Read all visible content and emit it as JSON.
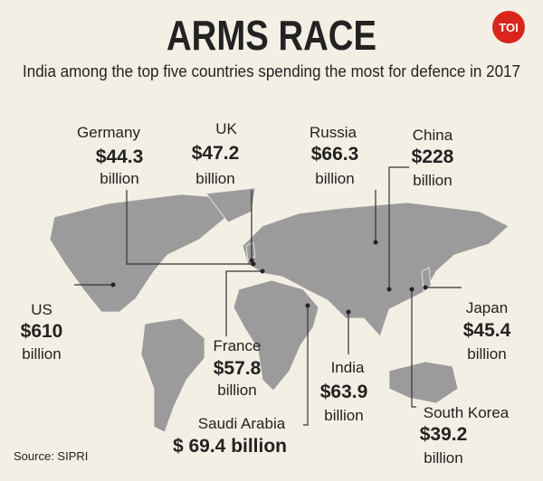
{
  "header": {
    "title": "ARMS RACE",
    "subtitle": "India among the top five countries spending the most for defence in 2017",
    "logo": "TOI"
  },
  "countries": [
    {
      "name": "Germany",
      "amount": "$44.3",
      "unit": "billion"
    },
    {
      "name": "UK",
      "amount": "$47.2",
      "unit": "billion"
    },
    {
      "name": "Russia",
      "amount": "$66.3",
      "unit": "billion"
    },
    {
      "name": "China",
      "amount": "$228",
      "unit": "billion"
    },
    {
      "name": "US",
      "amount": "$610",
      "unit": "billion"
    },
    {
      "name": "France",
      "amount": "$57.8",
      "unit": "billion"
    },
    {
      "name": "Saudi Arabia",
      "amount": "$ 69.4 billion"
    },
    {
      "name": "India",
      "amount": "$63.9",
      "unit": "billion"
    },
    {
      "name": "South Korea",
      "amount": "$39.2",
      "unit": "billion"
    },
    {
      "name": "Japan",
      "amount": "$45.4",
      "unit": "billion"
    }
  ],
  "source": "Source: SIPRI"
}
